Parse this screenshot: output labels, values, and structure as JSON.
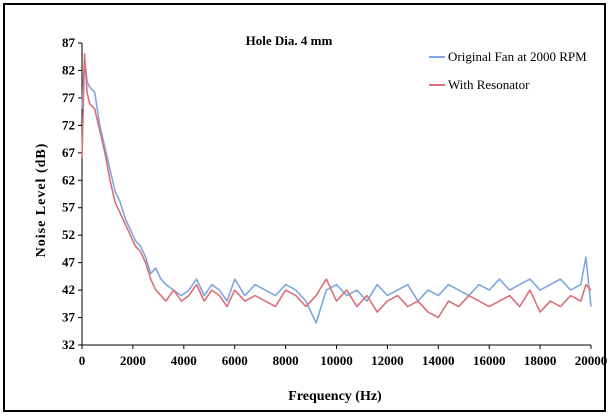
{
  "chart_data": {
    "type": "line",
    "title": "Hole Dia. 4 mm",
    "xlabel": "Frequency (Hz)",
    "ylabel": "Noise Level (dB)",
    "xlim": [
      0,
      20000
    ],
    "ylim": [
      32,
      87
    ],
    "x_ticks": [
      0,
      2000,
      4000,
      6000,
      8000,
      10000,
      12000,
      14000,
      16000,
      18000,
      20000
    ],
    "y_ticks": [
      32,
      37,
      42,
      47,
      52,
      57,
      62,
      67,
      72,
      77,
      82,
      87
    ],
    "grid": false,
    "legend_position": "top-right",
    "series": [
      {
        "name": "Original Fan at 2000 RPM",
        "color": "#7ea6e0",
        "x": [
          0,
          100,
          200,
          300,
          500,
          700,
          900,
          1100,
          1300,
          1500,
          1700,
          1900,
          2100,
          2300,
          2500,
          2700,
          2900,
          3100,
          3300,
          3600,
          3900,
          4200,
          4500,
          4800,
          5100,
          5400,
          5700,
          6000,
          6400,
          6800,
          7200,
          7600,
          8000,
          8400,
          8800,
          9200,
          9600,
          10000,
          10400,
          10800,
          11200,
          11600,
          12000,
          12400,
          12800,
          13200,
          13600,
          14000,
          14400,
          14800,
          15200,
          15600,
          16000,
          16400,
          16800,
          17200,
          17600,
          18000,
          18400,
          18800,
          19200,
          19600,
          19800,
          20000
        ],
        "values": [
          75,
          84,
          80,
          79,
          78,
          72,
          68,
          64,
          60,
          58,
          55,
          53,
          51,
          50,
          48,
          45,
          46,
          44,
          43,
          42,
          41,
          42,
          44,
          41,
          43,
          42,
          40,
          44,
          41,
          43,
          42,
          41,
          43,
          42,
          40,
          36,
          42,
          43,
          41,
          42,
          40,
          43,
          41,
          42,
          43,
          40,
          42,
          41,
          43,
          42,
          41,
          43,
          42,
          44,
          42,
          43,
          44,
          42,
          43,
          44,
          42,
          43,
          48,
          39
        ]
      },
      {
        "name": "With Resonator",
        "color": "#d9707a",
        "x": [
          0,
          100,
          200,
          300,
          500,
          700,
          900,
          1100,
          1300,
          1500,
          1700,
          1900,
          2100,
          2300,
          2500,
          2700,
          2900,
          3100,
          3300,
          3600,
          3900,
          4200,
          4500,
          4800,
          5100,
          5400,
          5700,
          6000,
          6400,
          6800,
          7200,
          7600,
          8000,
          8400,
          8800,
          9200,
          9600,
          10000,
          10400,
          10800,
          11200,
          11600,
          12000,
          12400,
          12800,
          13200,
          13600,
          14000,
          14400,
          14800,
          15200,
          15600,
          16000,
          16400,
          16800,
          17200,
          17600,
          18000,
          18400,
          18800,
          19200,
          19600,
          19800,
          20000
        ],
        "values": [
          66,
          85,
          78,
          76,
          75,
          71,
          67,
          62,
          58,
          56,
          54,
          52,
          50,
          49,
          47,
          44,
          42,
          41,
          40,
          42,
          40,
          41,
          43,
          40,
          42,
          41,
          39,
          42,
          40,
          41,
          40,
          39,
          42,
          41,
          39,
          41,
          44,
          40,
          42,
          39,
          41,
          38,
          40,
          41,
          39,
          40,
          38,
          37,
          40,
          39,
          41,
          40,
          39,
          40,
          41,
          39,
          42,
          38,
          40,
          39,
          41,
          40,
          43,
          42
        ]
      }
    ]
  }
}
